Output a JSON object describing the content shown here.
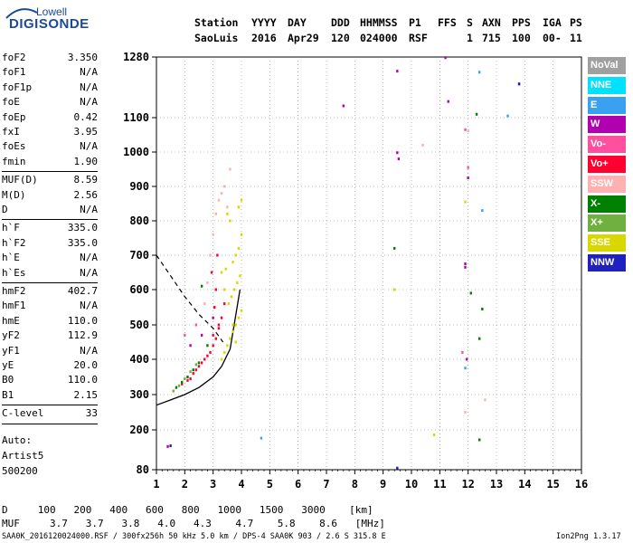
{
  "logo": {
    "line1": "Lowell",
    "line2": "DIGISONDE"
  },
  "header": {
    "row1": [
      "Station",
      "YYYY",
      "DAY",
      "DDD",
      "HHMMSS",
      "P1",
      "FFS",
      "S",
      "AXN",
      "PPS",
      "IGA",
      "PS"
    ],
    "row2": [
      "SaoLuis",
      "2016",
      "Apr29",
      "120",
      "024000",
      "RSF",
      "1",
      "715",
      "100",
      "00-",
      "11"
    ]
  },
  "params": [
    {
      "name": "foF2",
      "value": "3.350"
    },
    {
      "name": "foF1",
      "value": "N/A"
    },
    {
      "name": "foF1p",
      "value": "N/A"
    },
    {
      "name": "foE",
      "value": "N/A"
    },
    {
      "name": "foEp",
      "value": "0.42"
    },
    {
      "name": "fxI",
      "value": "3.95"
    },
    {
      "name": "foEs",
      "value": "N/A"
    },
    {
      "name": "fmin",
      "value": "1.90"
    },
    {
      "name": "MUF(D)",
      "value": "8.59"
    },
    {
      "name": "M(D)",
      "value": "2.56"
    },
    {
      "name": "D",
      "value": "N/A"
    },
    {
      "name": "h`F",
      "value": "335.0"
    },
    {
      "name": "h`F2",
      "value": "335.0"
    },
    {
      "name": "h`E",
      "value": "N/A"
    },
    {
      "name": "h`Es",
      "value": "N/A"
    },
    {
      "name": "hmF2",
      "value": "402.7"
    },
    {
      "name": "hmF1",
      "value": "N/A"
    },
    {
      "name": "hmE",
      "value": "110.0"
    },
    {
      "name": "yF2",
      "value": "112.9"
    },
    {
      "name": "yF1",
      "value": "N/A"
    },
    {
      "name": "yE",
      "value": "20.0"
    },
    {
      "name": "B0",
      "value": "110.0"
    },
    {
      "name": "B1",
      "value": "2.15"
    },
    {
      "name": "C-level",
      "value": "33"
    }
  ],
  "auto": {
    "line1": "Auto:",
    "line2": "Artist5",
    "line3": "500200"
  },
  "legend": [
    {
      "label": "NoVal",
      "color": "#a0a0a0"
    },
    {
      "label": "NNE",
      "color": "#00e0ff"
    },
    {
      "label": "E",
      "color": "#3aa0f0"
    },
    {
      "label": "W",
      "color": "#b000b0"
    },
    {
      "label": "Vo-",
      "color": "#ff50a0"
    },
    {
      "label": "Vo+",
      "color": "#ff0030"
    },
    {
      "label": "SSW",
      "color": "#ffb0b0"
    },
    {
      "label": "X-",
      "color": "#008000"
    },
    {
      "label": "X+",
      "color": "#70b040"
    },
    {
      "label": "SSE",
      "color": "#d8d800"
    },
    {
      "label": "NNW",
      "color": "#2020c0"
    }
  ],
  "muf_table": {
    "row_d": [
      "D",
      "100",
      "200",
      "400",
      "600",
      "800",
      "1000",
      "1500",
      "3000",
      "[km]"
    ],
    "row_muf": [
      "MUF",
      "3.7",
      "3.7",
      "3.8",
      "4.0",
      "4.3",
      "4.7",
      "5.8",
      "8.6",
      "[MHz]"
    ]
  },
  "footer": {
    "left": "SAA0K_2016120024000.RSF / 300fx256h 50 kHz 5.0 km / DPS-4 SAA0K 903 / 2.6 S 315.8 E",
    "right": "Ion2Png 1.3.17"
  },
  "chart_data": {
    "type": "scatter",
    "x_ticks": [
      1,
      2,
      3,
      4,
      5,
      6,
      7,
      8,
      9,
      10,
      11,
      12,
      13,
      14,
      15,
      16
    ],
    "y_ticks": [
      80,
      200,
      300,
      400,
      500,
      600,
      700,
      800,
      900,
      1000,
      1100,
      1280
    ],
    "xlim": [
      1,
      16
    ],
    "ylim": [
      80,
      1280
    ],
    "grid": true,
    "legend_position": "right",
    "profile_curve": {
      "x": [
        1.0,
        1.5,
        2.0,
        2.5,
        3.0,
        3.3,
        3.6,
        3.95
      ],
      "y": [
        270,
        285,
        300,
        320,
        350,
        380,
        430,
        600
      ]
    },
    "dashed_curve": {
      "x": [
        1.0,
        1.5,
        2.0,
        2.5,
        3.0,
        3.35
      ],
      "y": [
        700,
        640,
        580,
        530,
        490,
        450
      ]
    },
    "echoes": [
      {
        "mode": "Vo+",
        "x": [
          1.9,
          2.1,
          2.3,
          2.5,
          2.7,
          2.9,
          3.0,
          3.1,
          3.2,
          3.3,
          3.4,
          2.6,
          2.8,
          3.0,
          3.2,
          3.1,
          2.95,
          3.15,
          3.05,
          2.2,
          2.4
        ],
        "y": [
          330,
          340,
          360,
          380,
          400,
          420,
          440,
          460,
          490,
          520,
          560,
          390,
          410,
          470,
          500,
          600,
          650,
          700,
          550,
          345,
          370
        ]
      },
      {
        "mode": "SSE",
        "x": [
          3.3,
          3.4,
          3.5,
          3.6,
          3.7,
          3.8,
          3.9,
          4.0,
          3.55,
          3.65,
          3.75,
          3.85,
          3.95,
          3.45,
          3.7,
          3.8,
          3.9,
          4.0,
          3.6,
          3.5,
          3.3,
          3.4,
          3.9,
          4.0,
          3.7,
          3.8
        ],
        "y": [
          400,
          420,
          440,
          460,
          480,
          500,
          520,
          540,
          560,
          580,
          600,
          620,
          640,
          660,
          680,
          700,
          720,
          760,
          800,
          820,
          650,
          600,
          840,
          860,
          500,
          450
        ]
      },
      {
        "mode": "SSW",
        "x": [
          2.8,
          2.9,
          3.0,
          3.1,
          3.2,
          3.3,
          3.4,
          3.5,
          2.7,
          3.6
        ],
        "y": [
          620,
          700,
          760,
          820,
          860,
          880,
          900,
          840,
          560,
          950
        ]
      },
      {
        "mode": "X-",
        "x": [
          1.7,
          1.9,
          2.1,
          2.3,
          2.5,
          2.6,
          2.8,
          9.4,
          12.1,
          12.3,
          12.5,
          12.4,
          12.4
        ],
        "y": [
          320,
          335,
          350,
          370,
          390,
          610,
          440,
          720,
          590,
          1110,
          545,
          460,
          170
        ]
      },
      {
        "mode": "X+",
        "x": [
          1.6,
          1.8,
          2.0,
          2.2,
          2.4
        ],
        "y": [
          310,
          325,
          345,
          365,
          385
        ]
      },
      {
        "mode": "W",
        "x": [
          1.4,
          2.2,
          2.6,
          3.0,
          7.6,
          9.5,
          9.5,
          9.55,
          11.9,
          11.9,
          11.95,
          11.3,
          11.2,
          12.0,
          13.8
        ],
        "y": [
          150,
          440,
          470,
          520,
          1135,
          1238,
          998,
          980,
          675,
          665,
          400,
          1148,
          1278,
          925,
          1200
        ]
      },
      {
        "mode": "Vo-",
        "x": [
          2.0,
          2.4,
          11.9,
          12.0,
          11.8
        ],
        "y": [
          470,
          500,
          1065,
          955,
          420
        ]
      },
      {
        "mode": "E",
        "x": [
          4.7,
          11.9,
          12.5,
          13.4,
          12.4
        ],
        "y": [
          175,
          375,
          830,
          1105,
          1235
        ]
      },
      {
        "mode": "NNW",
        "x": [
          1.5,
          9.5,
          13.8
        ],
        "y": [
          152,
          85,
          1200
        ]
      },
      {
        "mode": "SSE",
        "x": [
          9.4,
          10.8,
          11.9
        ],
        "y": [
          600,
          185,
          855
        ]
      },
      {
        "mode": "SSW",
        "x": [
          10.4,
          11.9,
          12.6,
          12.0
        ],
        "y": [
          1020,
          250,
          285,
          1062
        ]
      }
    ]
  }
}
